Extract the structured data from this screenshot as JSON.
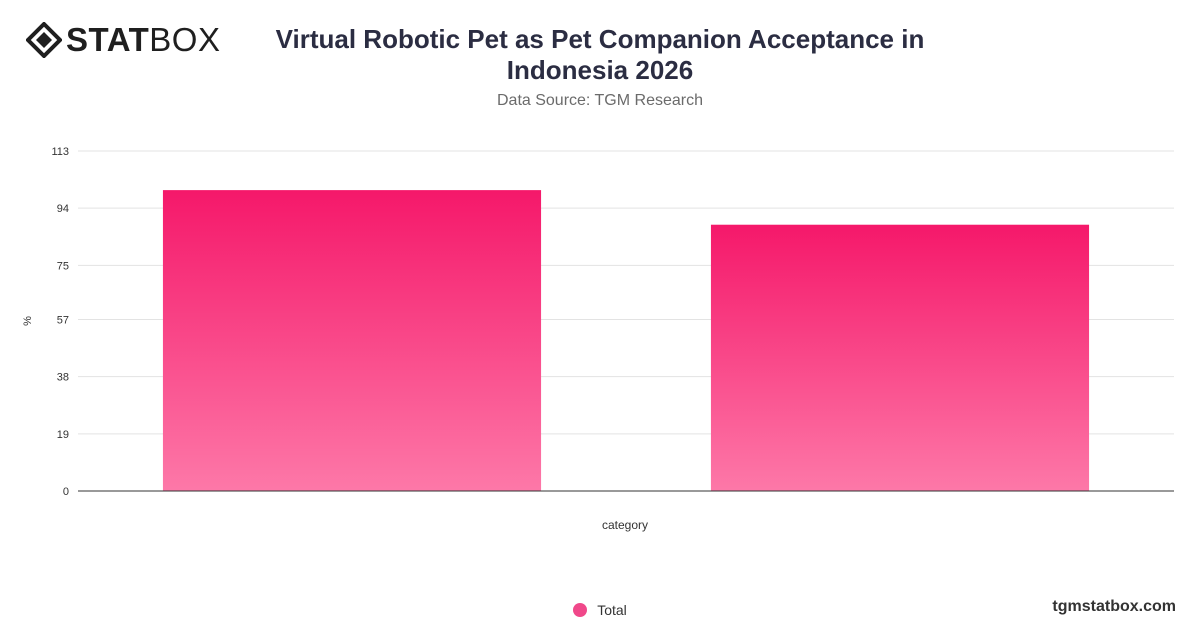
{
  "brand": {
    "bold": "STAT",
    "light": "BOX",
    "site": "tgmstatbox.com",
    "logo_icon": "diamond-logo-icon"
  },
  "title": "Virtual Robotic Pet as Pet Companion Acceptance in Indonesia 2026",
  "subtitle": "Data Source: TGM Research",
  "colors": {
    "bar_top": "#f5186a",
    "bar_bottom": "#fd78a8",
    "grid": "#e3e3e3",
    "axis": "#333333"
  },
  "chart_data": {
    "type": "bar",
    "categories": [
      "",
      ""
    ],
    "series": [
      {
        "name": "Total",
        "values": [
          100,
          88.5
        ]
      }
    ],
    "xlabel": "category",
    "ylabel": "%",
    "ylim": [
      0,
      113
    ],
    "yticks": [
      0,
      19,
      38,
      57,
      75,
      94,
      113
    ],
    "grid": true,
    "legend": "bottom-center"
  }
}
